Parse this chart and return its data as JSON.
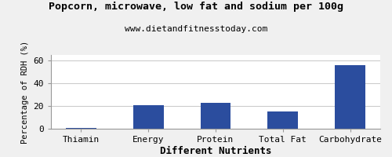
{
  "title": "Popcorn, microwave, low fat and sodium per 100g",
  "subtitle": "www.dietandfitnesstoday.com",
  "xlabel": "Different Nutrients",
  "ylabel": "Percentage of RDH (%)",
  "categories": [
    "Thiamin",
    "Energy",
    "Protein",
    "Total Fat",
    "Carbohydrate"
  ],
  "values": [
    0.5,
    21,
    23,
    15,
    56
  ],
  "bar_color": "#2b4d9e",
  "ylim": [
    0,
    65
  ],
  "yticks": [
    0,
    20,
    40,
    60
  ],
  "background_color": "#f0f0f0",
  "plot_background": "#ffffff",
  "grid_color": "#cccccc",
  "title_fontsize": 9.5,
  "subtitle_fontsize": 8,
  "xlabel_fontsize": 9,
  "ylabel_fontsize": 7.5,
  "tick_fontsize": 8
}
